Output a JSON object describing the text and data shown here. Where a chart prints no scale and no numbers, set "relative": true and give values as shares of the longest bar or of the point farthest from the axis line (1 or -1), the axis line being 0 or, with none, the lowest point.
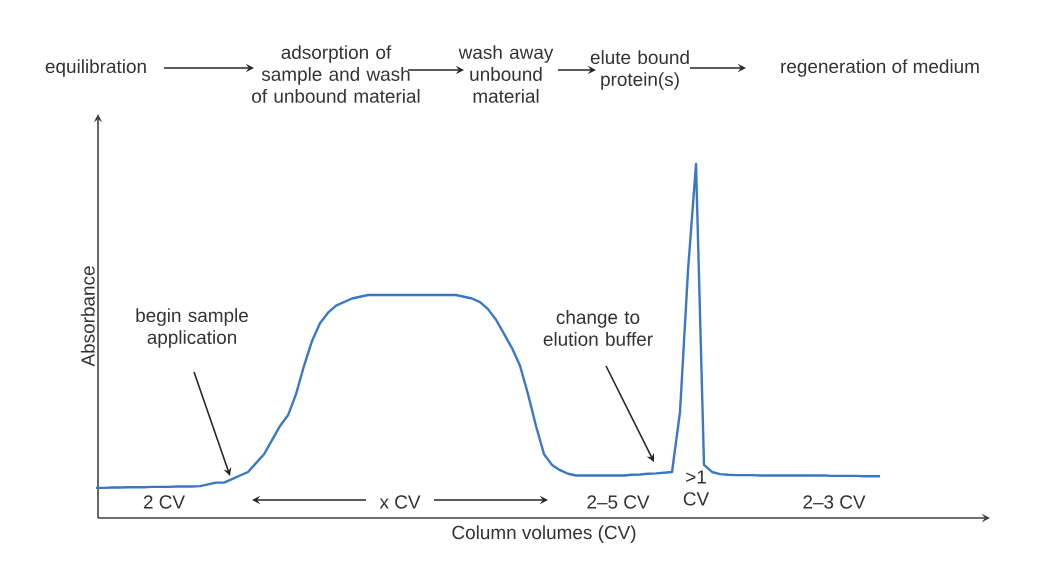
{
  "chart_data": {
    "type": "line",
    "relative": true,
    "xlabel": "Column volumes (CV)",
    "ylabel": "Absorbance",
    "categories": [
      null,
      null,
      null,
      null,
      null,
      null,
      null,
      null,
      null,
      null,
      null,
      null,
      null,
      null,
      null,
      null,
      null,
      null,
      null,
      null,
      null,
      null,
      null,
      null,
      null,
      null,
      null,
      null,
      null,
      null,
      null,
      null,
      null,
      null,
      null,
      null,
      null,
      null,
      null,
      null,
      null,
      null,
      null,
      null,
      null,
      null,
      null,
      null,
      null,
      null,
      null,
      null,
      null,
      null,
      null,
      null,
      null,
      null,
      null,
      null,
      null,
      null,
      null,
      null,
      null,
      null,
      null,
      null,
      null,
      null,
      null,
      null,
      null,
      null,
      null,
      null,
      null,
      null,
      null,
      null,
      null,
      null,
      null,
      null,
      null,
      null,
      null,
      null,
      null,
      null,
      null,
      null,
      null,
      null,
      null,
      null,
      null,
      null,
      null
    ],
    "series": [
      {
        "color": "#3b78c4",
        "values": [
          0.085,
          0.085,
          0.086,
          0.086,
          0.087,
          0.087,
          0.087,
          0.088,
          0.088,
          0.088,
          0.089,
          0.089,
          0.089,
          0.09,
          0.095,
          0.1,
          0.1,
          0.11,
          0.12,
          0.13,
          0.155,
          0.18,
          0.22,
          0.26,
          0.29,
          0.35,
          0.43,
          0.5,
          0.55,
          0.58,
          0.6,
          0.61,
          0.62,
          0.625,
          0.63,
          0.63,
          0.63,
          0.63,
          0.63,
          0.63,
          0.63,
          0.63,
          0.63,
          0.63,
          0.63,
          0.63,
          0.625,
          0.62,
          0.61,
          0.59,
          0.56,
          0.52,
          0.48,
          0.43,
          0.35,
          0.26,
          0.18,
          0.15,
          0.135,
          0.125,
          0.12,
          0.12,
          0.12,
          0.12,
          0.12,
          0.12,
          0.12,
          0.122,
          0.123,
          0.125,
          0.126,
          0.128,
          0.13,
          0.3,
          0.7,
          1,
          0.15,
          0.13,
          0.124,
          0.122,
          0.121,
          0.121,
          0.121,
          0.12,
          0.12,
          0.12,
          0.12,
          0.12,
          0.12,
          0.12,
          0.12,
          0.12,
          0.119,
          0.119,
          0.119,
          0.119,
          0.118,
          0.118,
          0.118
        ]
      }
    ],
    "annotations": [
      "equilibration",
      "adsorption of sample and wash of unbound material",
      "wash away unbound material",
      "elute bound protein(s)",
      "regeneration of medium",
      "begin sample application",
      "change to elution buffer",
      "2 CV",
      "x CV",
      "2–5 CV",
      ">1 CV",
      "2–3 CV"
    ]
  }
}
